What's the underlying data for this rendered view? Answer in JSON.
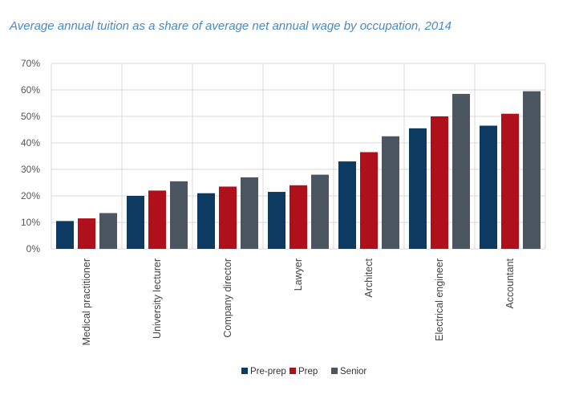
{
  "chart_data": {
    "type": "bar",
    "title": "Average annual tuition as a share of average net annual wage by occupation, 2014",
    "xlabel": "",
    "ylabel": "",
    "ylim": [
      0,
      70
    ],
    "yticks": [
      0,
      10,
      20,
      30,
      40,
      50,
      60,
      70
    ],
    "ytick_labels": [
      "0%",
      "10%",
      "20%",
      "30%",
      "40%",
      "50%",
      "60%",
      "70%"
    ],
    "grid": true,
    "legend_position": "bottom-center",
    "categories": [
      "Medical practitioner",
      "University lecturer",
      "Company director",
      "Lawyer",
      "Architect",
      "Electrical engineer",
      "Accountant"
    ],
    "series": [
      {
        "name": "Pre-prep",
        "color": "#0c3a61",
        "values": [
          10.5,
          20,
          21,
          21.5,
          33,
          45.5,
          46.5
        ]
      },
      {
        "name": "Prep",
        "color": "#b0101c",
        "values": [
          11.5,
          22,
          23.5,
          24,
          36.5,
          50,
          51
        ]
      },
      {
        "name": "Senior",
        "color": "#4b5660",
        "values": [
          13.5,
          25.5,
          27,
          28,
          42.5,
          58.5,
          59.5
        ]
      }
    ]
  }
}
